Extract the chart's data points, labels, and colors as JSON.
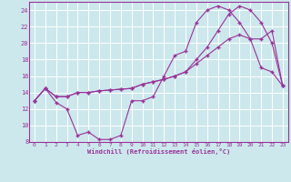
{
  "xlabel": "Windchill (Refroidissement éolien,°C)",
  "background_color": "#cce8ec",
  "grid_color": "#ffffff",
  "line_color": "#993399",
  "xlim": [
    -0.5,
    23.5
  ],
  "ylim": [
    8,
    25
  ],
  "yticks": [
    8,
    10,
    12,
    14,
    16,
    18,
    20,
    22,
    24
  ],
  "xticks": [
    0,
    1,
    2,
    3,
    4,
    5,
    6,
    7,
    8,
    9,
    10,
    11,
    12,
    13,
    14,
    15,
    16,
    17,
    18,
    19,
    20,
    21,
    22,
    23
  ],
  "line1_x": [
    0,
    1,
    2,
    3,
    4,
    5,
    6,
    7,
    8,
    9,
    10,
    11,
    12,
    13,
    14,
    15,
    16,
    17,
    18,
    19,
    20,
    21,
    22,
    23
  ],
  "line1_y": [
    13.0,
    14.5,
    12.8,
    12.0,
    8.8,
    9.2,
    8.3,
    8.3,
    8.8,
    13.0,
    13.0,
    13.5,
    16.0,
    18.5,
    19.0,
    22.5,
    24.0,
    24.5,
    24.0,
    22.5,
    20.5,
    17.0,
    16.5,
    14.8
  ],
  "line2_x": [
    0,
    1,
    2,
    3,
    4,
    5,
    6,
    7,
    8,
    9,
    10,
    11,
    12,
    13,
    14,
    15,
    16,
    17,
    18,
    19,
    20,
    21,
    22,
    23
  ],
  "line2_y": [
    13.0,
    14.5,
    13.5,
    13.5,
    14.0,
    14.0,
    14.2,
    14.3,
    14.4,
    14.5,
    15.0,
    15.3,
    15.6,
    16.0,
    16.5,
    17.5,
    18.5,
    19.5,
    20.5,
    21.0,
    20.5,
    20.5,
    21.5,
    14.8
  ],
  "line3_x": [
    0,
    1,
    2,
    3,
    4,
    5,
    6,
    7,
    8,
    9,
    10,
    11,
    12,
    13,
    14,
    15,
    16,
    17,
    18,
    19,
    20,
    21,
    22,
    23
  ],
  "line3_y": [
    13.0,
    14.5,
    13.5,
    13.5,
    14.0,
    14.0,
    14.2,
    14.3,
    14.4,
    14.5,
    15.0,
    15.3,
    15.6,
    16.0,
    16.5,
    18.0,
    19.5,
    21.5,
    23.5,
    24.5,
    24.0,
    22.5,
    20.0,
    14.8
  ]
}
